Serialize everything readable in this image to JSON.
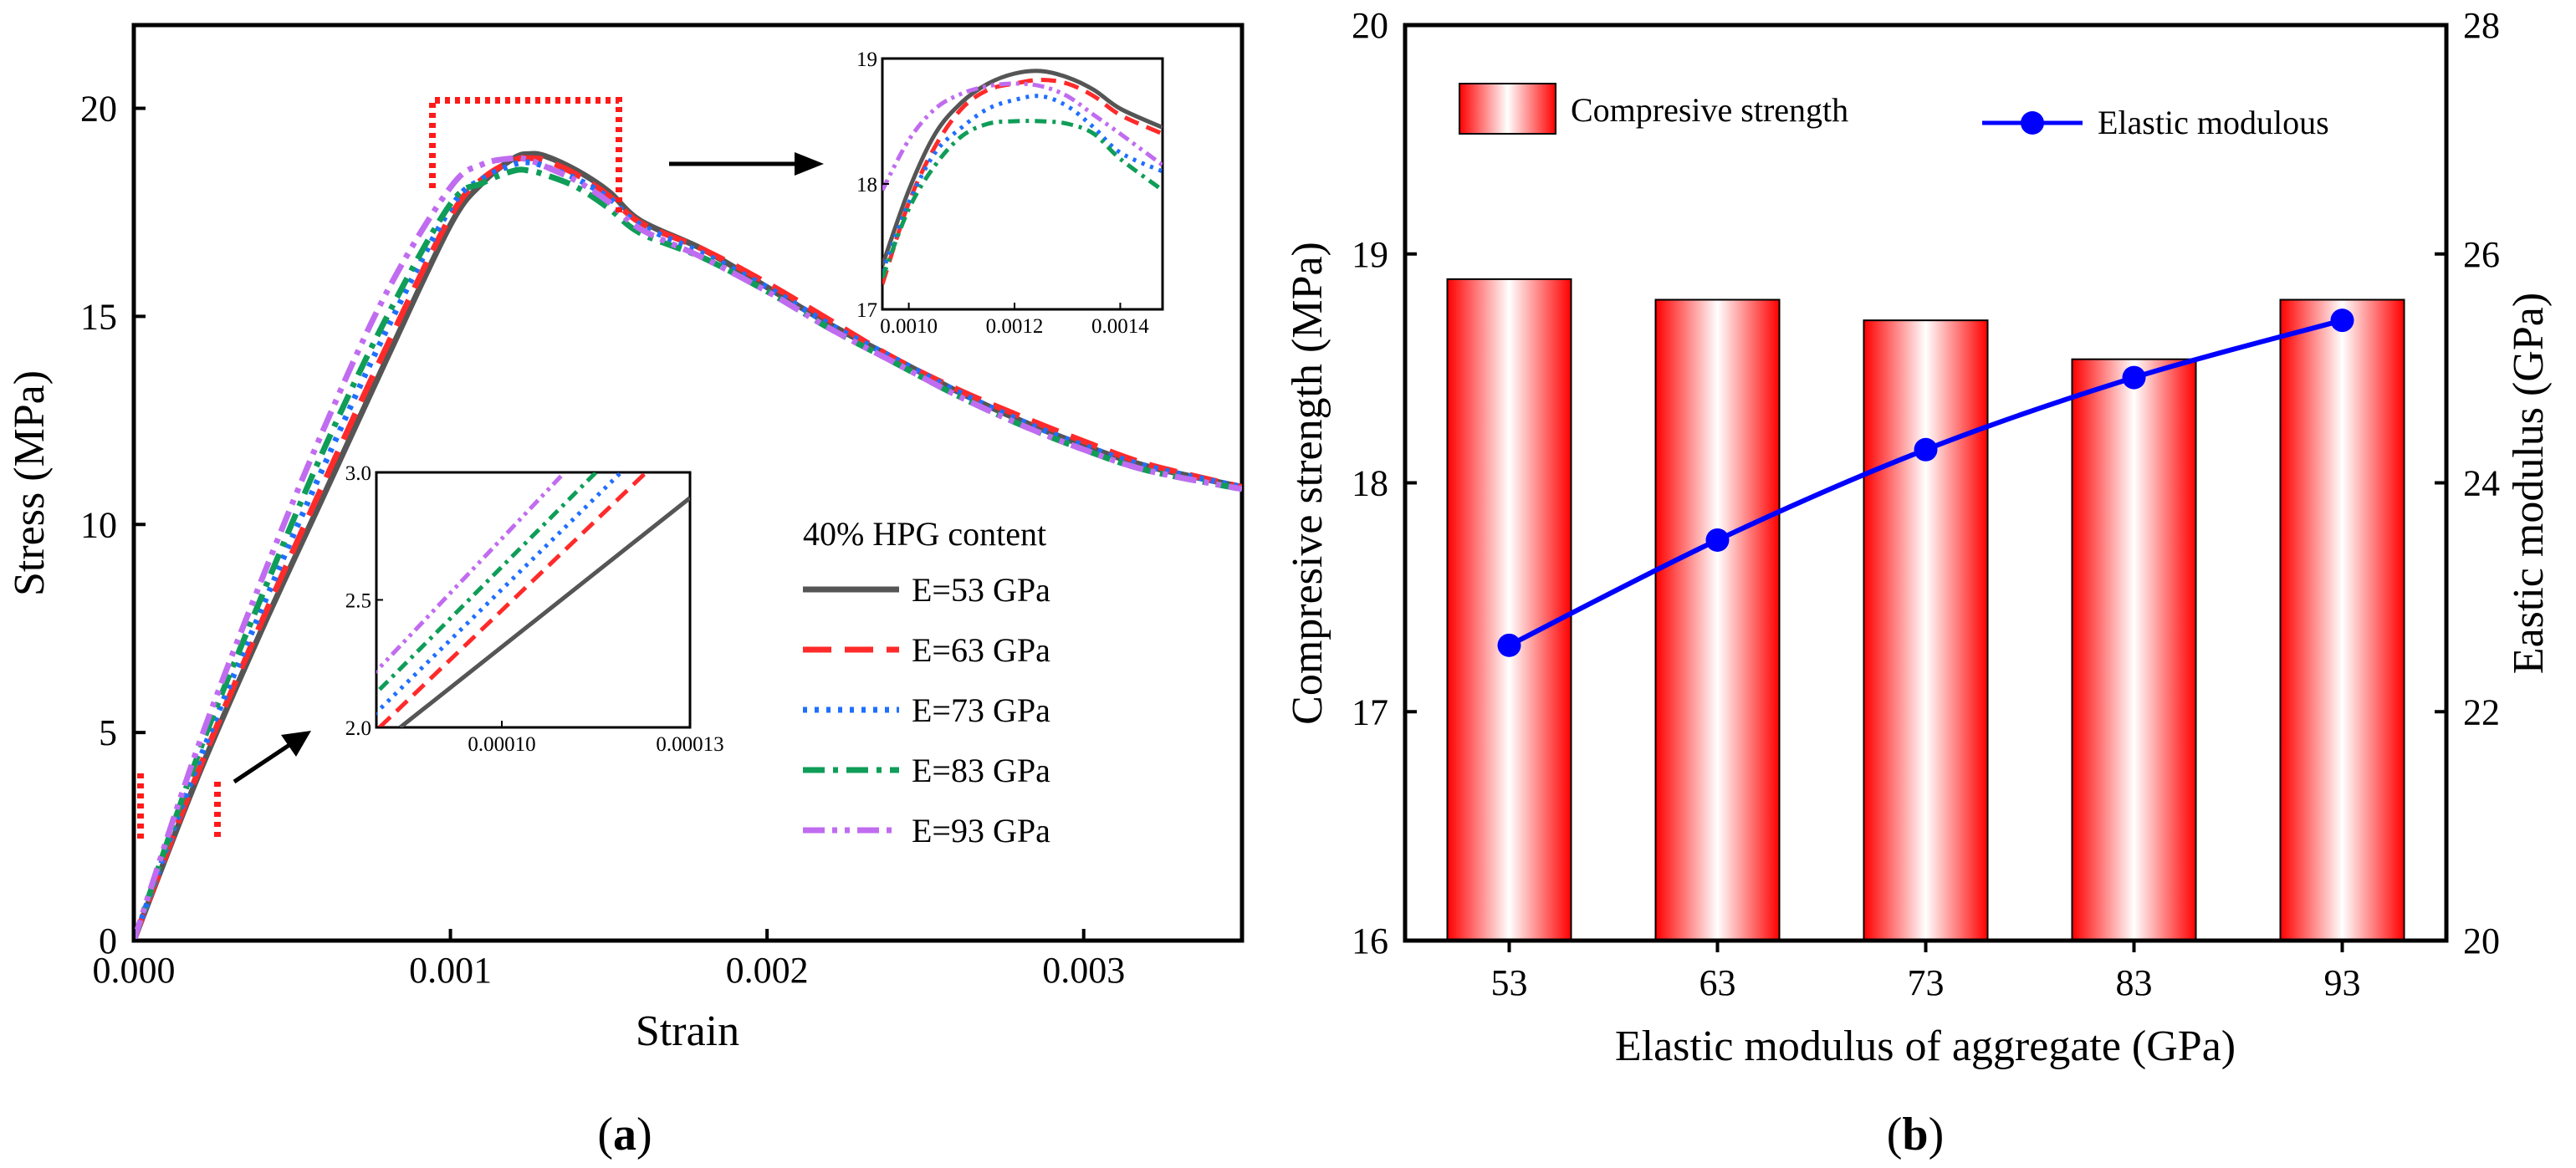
{
  "chart_data": [
    {
      "type": "line",
      "panel_label": "(a)",
      "panel_letter": "a",
      "xlabel": "Strain",
      "ylabel": "Stress (MPa)",
      "xlim": [
        0,
        0.0035
      ],
      "ylim": [
        0,
        22
      ],
      "x_ticks": [
        0.0,
        0.001,
        0.002,
        0.003
      ],
      "x_tick_labels": [
        "0.000",
        "0.001",
        "0.002",
        "0.003"
      ],
      "y_ticks": [
        0,
        5,
        10,
        15,
        20
      ],
      "y_tick_labels": [
        "0",
        "5",
        "10",
        "15",
        "20"
      ],
      "legend_title": "40% HPG content",
      "legend_position": "middle-right",
      "series": [
        {
          "name": "E=53 GPa",
          "color": "#555555",
          "dash": "solid",
          "points": [
            [
              0,
              0
            ],
            [
              0.0002,
              3.9
            ],
            [
              0.0004,
              7.4
            ],
            [
              0.0006,
              10.7
            ],
            [
              0.0008,
              14.0
            ],
            [
              0.001,
              17.2
            ],
            [
              0.0011,
              18.2
            ],
            [
              0.0012,
              18.8
            ],
            [
              0.00125,
              18.9
            ],
            [
              0.0013,
              18.85
            ],
            [
              0.0014,
              18.5
            ],
            [
              0.0015,
              18.0
            ],
            [
              0.0016,
              17.3
            ],
            [
              0.0018,
              16.6
            ],
            [
              0.002,
              15.7
            ],
            [
              0.0022,
              14.8
            ],
            [
              0.0024,
              14.0
            ],
            [
              0.0026,
              13.2
            ],
            [
              0.0028,
              12.5
            ],
            [
              0.003,
              11.9
            ],
            [
              0.0032,
              11.4
            ],
            [
              0.0035,
              10.9
            ]
          ]
        },
        {
          "name": "E=63 GPa",
          "color": "#ff2a2a",
          "dash": "long-dash",
          "points": [
            [
              0,
              0
            ],
            [
              0.0002,
              4.0
            ],
            [
              0.0004,
              7.6
            ],
            [
              0.0006,
              11.0
            ],
            [
              0.0008,
              14.3
            ],
            [
              0.001,
              17.4
            ],
            [
              0.0011,
              18.3
            ],
            [
              0.0012,
              18.75
            ],
            [
              0.00125,
              18.8
            ],
            [
              0.0013,
              18.75
            ],
            [
              0.0014,
              18.4
            ],
            [
              0.0015,
              17.9
            ],
            [
              0.0016,
              17.25
            ],
            [
              0.0018,
              16.6
            ],
            [
              0.002,
              15.8
            ],
            [
              0.0022,
              14.9
            ],
            [
              0.0024,
              14.0
            ],
            [
              0.0026,
              13.25
            ],
            [
              0.0028,
              12.6
            ],
            [
              0.003,
              12.0
            ],
            [
              0.0032,
              11.45
            ],
            [
              0.0035,
              10.9
            ]
          ]
        },
        {
          "name": "E=73 GPa",
          "color": "#1f6fff",
          "dash": "dot",
          "points": [
            [
              0,
              0
            ],
            [
              0.0002,
              4.2
            ],
            [
              0.0004,
              7.9
            ],
            [
              0.0006,
              11.4
            ],
            [
              0.0008,
              14.7
            ],
            [
              0.001,
              17.6
            ],
            [
              0.0011,
              18.3
            ],
            [
              0.0012,
              18.65
            ],
            [
              0.00125,
              18.7
            ],
            [
              0.0013,
              18.6
            ],
            [
              0.0014,
              18.3
            ],
            [
              0.0015,
              17.85
            ],
            [
              0.0016,
              17.2
            ],
            [
              0.0018,
              16.5
            ],
            [
              0.002,
              15.7
            ],
            [
              0.0022,
              14.8
            ],
            [
              0.0024,
              14.0
            ],
            [
              0.0026,
              13.2
            ],
            [
              0.0028,
              12.5
            ],
            [
              0.003,
              11.9
            ],
            [
              0.0032,
              11.4
            ],
            [
              0.0035,
              10.9
            ]
          ]
        },
        {
          "name": "E=83 GPa",
          "color": "#0f9d58",
          "dash": "dash-dot",
          "points": [
            [
              0,
              0
            ],
            [
              0.0002,
              4.4
            ],
            [
              0.0004,
              8.2
            ],
            [
              0.0006,
              11.8
            ],
            [
              0.0008,
              15.0
            ],
            [
              0.001,
              17.7
            ],
            [
              0.0011,
              18.2
            ],
            [
              0.0012,
              18.5
            ],
            [
              0.00125,
              18.5
            ],
            [
              0.0013,
              18.4
            ],
            [
              0.0014,
              18.1
            ],
            [
              0.0015,
              17.6
            ],
            [
              0.0016,
              17.0
            ],
            [
              0.0018,
              16.4
            ],
            [
              0.002,
              15.6
            ],
            [
              0.0022,
              14.7
            ],
            [
              0.0024,
              13.9
            ],
            [
              0.0026,
              13.1
            ],
            [
              0.0028,
              12.4
            ],
            [
              0.003,
              11.8
            ],
            [
              0.0032,
              11.3
            ],
            [
              0.0035,
              10.85
            ]
          ]
        },
        {
          "name": "E=93 GPa",
          "color": "#c06cf0",
          "dash": "dash-dot-dot",
          "points": [
            [
              0,
              0
            ],
            [
              0.0002,
              4.6
            ],
            [
              0.0004,
              8.6
            ],
            [
              0.0006,
              12.3
            ],
            [
              0.0008,
              15.6
            ],
            [
              0.001,
              18.1
            ],
            [
              0.0011,
              18.65
            ],
            [
              0.0012,
              18.8
            ],
            [
              0.00125,
              18.75
            ],
            [
              0.0013,
              18.6
            ],
            [
              0.0014,
              18.25
            ],
            [
              0.0015,
              17.75
            ],
            [
              0.0016,
              17.1
            ],
            [
              0.0018,
              16.4
            ],
            [
              0.002,
              15.6
            ],
            [
              0.0022,
              14.7
            ],
            [
              0.0024,
              13.9
            ],
            [
              0.0026,
              13.1
            ],
            [
              0.0028,
              12.4
            ],
            [
              0.003,
              11.8
            ],
            [
              0.0032,
              11.3
            ],
            [
              0.0035,
              10.85
            ]
          ]
        }
      ],
      "insets": [
        {
          "xlim": [
            8e-05,
            0.00013
          ],
          "ylim": [
            2.0,
            3.0
          ],
          "x_ticks": [
            0.0001,
            0.00013
          ],
          "x_tick_labels": [
            "0.00010",
            "0.00013"
          ],
          "y_ticks": [
            2.0,
            2.5,
            3.0
          ],
          "y_tick_labels": [
            "2.0",
            "2.5",
            "3.0"
          ],
          "series_points": [
            [
              [
                8.38e-05,
                2.0
              ],
              [
                0.00013,
                2.9
              ]
            ],
            [
              [
                8.05e-05,
                2.0
              ],
              [
                0.000123,
                3.0
              ]
            ],
            [
              [
                7.76e-05,
                2.0
              ],
              [
                0.000119,
                3.0
              ]
            ],
            [
              [
                7.45e-05,
                2.0
              ],
              [
                0.000115,
                3.0
              ]
            ],
            [
              [
                7.15e-05,
                2.0
              ],
              [
                0.00011,
                3.0
              ]
            ]
          ]
        },
        {
          "xlim": [
            0.00095,
            0.00148
          ],
          "ylim": [
            17,
            19
          ],
          "x_ticks": [
            0.001,
            0.0012,
            0.0014
          ],
          "x_tick_labels": [
            "0.0010",
            "0.0012",
            "0.0014"
          ],
          "y_ticks": [
            17,
            18,
            19
          ],
          "y_tick_labels": [
            "17",
            "18",
            "19"
          ],
          "series_points": [
            [
              [
                0.00095,
                17.35
              ],
              [
                0.001,
                17.95
              ],
              [
                0.00105,
                18.4
              ],
              [
                0.0011,
                18.65
              ],
              [
                0.00115,
                18.8
              ],
              [
                0.0012,
                18.88
              ],
              [
                0.00125,
                18.9
              ],
              [
                0.0013,
                18.85
              ],
              [
                0.00135,
                18.75
              ],
              [
                0.0014,
                18.6
              ],
              [
                0.00148,
                18.45
              ]
            ],
            [
              [
                0.00095,
                17.2
              ],
              [
                0.001,
                17.85
              ],
              [
                0.00105,
                18.3
              ],
              [
                0.0011,
                18.6
              ],
              [
                0.00115,
                18.75
              ],
              [
                0.0012,
                18.8
              ],
              [
                0.00125,
                18.83
              ],
              [
                0.0013,
                18.8
              ],
              [
                0.00135,
                18.7
              ],
              [
                0.0014,
                18.55
              ],
              [
                0.00148,
                18.4
              ]
            ],
            [
              [
                0.00095,
                17.3
              ],
              [
                0.001,
                17.85
              ],
              [
                0.00105,
                18.25
              ],
              [
                0.0011,
                18.45
              ],
              [
                0.00115,
                18.6
              ],
              [
                0.0012,
                18.67
              ],
              [
                0.00125,
                18.7
              ],
              [
                0.0013,
                18.62
              ],
              [
                0.00135,
                18.45
              ],
              [
                0.0014,
                18.25
              ],
              [
                0.00148,
                18.1
              ]
            ],
            [
              [
                0.00095,
                17.25
              ],
              [
                0.001,
                17.8
              ],
              [
                0.00105,
                18.15
              ],
              [
                0.0011,
                18.38
              ],
              [
                0.00115,
                18.48
              ],
              [
                0.0012,
                18.5
              ],
              [
                0.00125,
                18.5
              ],
              [
                0.0013,
                18.48
              ],
              [
                0.00135,
                18.4
              ],
              [
                0.0014,
                18.2
              ],
              [
                0.00148,
                17.95
              ]
            ],
            [
              [
                0.00095,
                17.95
              ],
              [
                0.001,
                18.35
              ],
              [
                0.00105,
                18.6
              ],
              [
                0.0011,
                18.72
              ],
              [
                0.00115,
                18.78
              ],
              [
                0.0012,
                18.8
              ],
              [
                0.00125,
                18.78
              ],
              [
                0.0013,
                18.7
              ],
              [
                0.00135,
                18.55
              ],
              [
                0.0014,
                18.4
              ],
              [
                0.00148,
                18.15
              ]
            ]
          ]
        }
      ]
    },
    {
      "type": "bar+line",
      "panel_label": "(b)",
      "panel_letter": "b",
      "categories": [
        "53",
        "63",
        "73",
        "83",
        "93"
      ],
      "xlabel": "Elastic modulus of aggregate (GPa)",
      "ylabel_left": "Compresive strength (MPa)",
      "ylabel_right": "Eastic modulus (GPa)",
      "ylim_left": [
        16,
        20
      ],
      "ylim_right": [
        20,
        28
      ],
      "y_ticks_left": [
        16,
        17,
        18,
        19,
        20
      ],
      "y_tick_labels_left": [
        "16",
        "17",
        "18",
        "19",
        "20"
      ],
      "y_ticks_right": [
        20,
        22,
        24,
        26,
        28
      ],
      "y_tick_labels_right": [
        "20",
        "22",
        "24",
        "26",
        "28"
      ],
      "legend_position": "top",
      "series": [
        {
          "name": "Compresive strength",
          "type": "bar",
          "axis": "left",
          "color": "#ff0000",
          "values": [
            18.89,
            18.8,
            18.71,
            18.54,
            18.8
          ]
        },
        {
          "name": "Elastic modulous",
          "type": "line",
          "axis": "right",
          "color": "#0000ff",
          "values": [
            22.58,
            23.5,
            24.29,
            24.92,
            25.42
          ]
        }
      ]
    }
  ]
}
